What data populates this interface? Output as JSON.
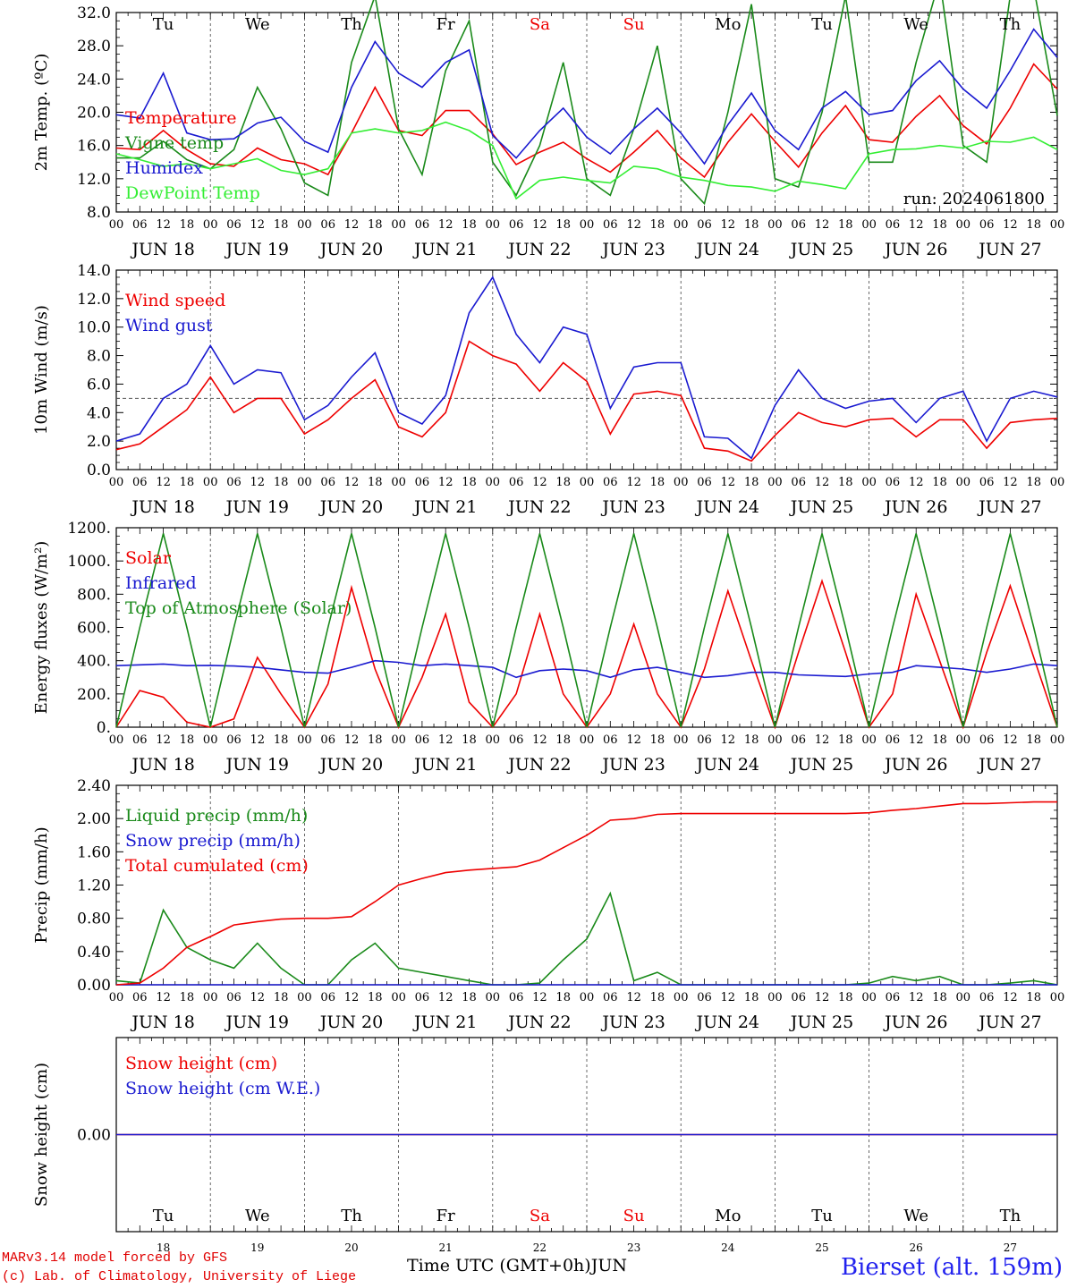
{
  "chart_data": [
    {
      "type": "line",
      "ylabel": "2m Temp. (ºC)",
      "ylim": [
        8,
        32
      ],
      "ytick_labels": [
        "8.0",
        "12.0",
        "16.0",
        "20.0",
        "24.0",
        "28.0",
        "32.0"
      ],
      "x_label_hours": [
        "00",
        "06",
        "12",
        "18"
      ],
      "date_labels": [
        "JUN 18",
        "JUN 19",
        "JUN 20",
        "JUN 21",
        "JUN 22",
        "JUN 23",
        "JUN 24",
        "JUN 25",
        "JUN 26",
        "JUN 27"
      ],
      "annotation": "run: 2024061800",
      "x": [
        0,
        6,
        12,
        18,
        24,
        30,
        36,
        42,
        48,
        54,
        60,
        66,
        72,
        78,
        84,
        90,
        96,
        102,
        108,
        114,
        120,
        126,
        132,
        138,
        144,
        150,
        156,
        162,
        168,
        174,
        180,
        186,
        192,
        198,
        204,
        210,
        216,
        222,
        228,
        234,
        240
      ],
      "series": [
        {
          "name": "Temperature",
          "color": "#ee0000",
          "values": [
            15.7,
            15.5,
            17.8,
            15.5,
            13.8,
            13.5,
            15.7,
            14.3,
            13.8,
            12.5,
            17.5,
            23,
            17.8,
            17.2,
            20.2,
            20.2,
            17.4,
            13.7,
            15.2,
            16.4,
            14.4,
            12.8,
            15.2,
            17.8,
            14.5,
            12.2,
            16.4,
            19.8,
            16.5,
            13.4,
            17.5,
            20.8,
            16.7,
            16.4,
            19.5,
            22,
            18.4,
            16.2,
            20.5,
            25.8,
            22.8
          ]
        },
        {
          "name": "Vigne temp",
          "color": "#1a8a1a",
          "values": [
            14.5,
            14.5,
            16.5,
            14.3,
            13.2,
            15.5,
            23,
            18,
            11.5,
            10,
            26,
            34,
            18,
            12.5,
            25,
            31,
            14,
            10,
            16,
            26,
            12,
            10,
            18,
            28,
            12,
            9,
            20,
            33,
            12,
            11,
            20,
            34,
            14,
            14,
            26,
            36,
            16,
            14,
            34,
            35,
            19.6
          ]
        },
        {
          "name": "Humidex",
          "color": "#1a1ad0",
          "values": [
            19.7,
            19.3,
            24.7,
            17.5,
            16.7,
            16.8,
            18.7,
            19.4,
            16.5,
            15.2,
            23,
            28.5,
            24.7,
            23,
            26,
            27.5,
            17.2,
            14.5,
            17.8,
            20.5,
            17,
            15,
            18,
            20.5,
            17.5,
            13.8,
            18.5,
            22.3,
            17.8,
            15.5,
            20.5,
            22.5,
            19.7,
            20.2,
            23.8,
            26.2,
            22.8,
            20.5,
            25,
            30,
            26.6
          ]
        },
        {
          "name": "DewPoint Temp",
          "color": "#33ee33",
          "values": [
            15,
            14.3,
            13.5,
            13.8,
            13.2,
            13.8,
            14.4,
            13,
            12.5,
            13.2,
            17.5,
            18,
            17.5,
            17.8,
            18.8,
            17.8,
            16,
            9.6,
            11.8,
            12.2,
            11.8,
            11.5,
            13.5,
            13.2,
            12.2,
            11.8,
            11.2,
            11,
            10.5,
            11.7,
            11.3,
            10.8,
            15,
            15.5,
            15.6,
            16,
            15.7,
            16.5,
            16.4,
            17,
            15.5
          ]
        }
      ]
    },
    {
      "type": "line",
      "ylabel": "10m Wind (m/s)",
      "ylim": [
        0,
        14
      ],
      "ytick_labels": [
        "0.0",
        "2.0",
        "4.0",
        "6.0",
        "8.0",
        "10.0",
        "12.0",
        "14.0"
      ],
      "x_label_hours": [
        "00",
        "06",
        "12",
        "18"
      ],
      "date_labels": [
        "JUN 18",
        "JUN 19",
        "JUN 20",
        "JUN 21",
        "JUN 22",
        "JUN 23",
        "JUN 24",
        "JUN 25",
        "JUN 26",
        "JUN 27"
      ],
      "reference_line": 5,
      "x": [
        0,
        6,
        12,
        18,
        24,
        30,
        36,
        42,
        48,
        54,
        60,
        66,
        72,
        78,
        84,
        90,
        96,
        102,
        108,
        114,
        120,
        126,
        132,
        138,
        144,
        150,
        156,
        162,
        168,
        174,
        180,
        186,
        192,
        198,
        204,
        210,
        216,
        222,
        228,
        234,
        240
      ],
      "series": [
        {
          "name": "Wind speed",
          "color": "#ee0000",
          "values": [
            1.4,
            1.8,
            3,
            4.2,
            6.5,
            4,
            5,
            5,
            2.5,
            3.5,
            5,
            6.3,
            3,
            2.3,
            4,
            9,
            8,
            7.4,
            5.5,
            7.5,
            6.2,
            2.5,
            5.3,
            5.5,
            5.2,
            1.5,
            1.3,
            0.6,
            2.4,
            4,
            3.3,
            3,
            3.5,
            3.6,
            2.3,
            3.5,
            3.5,
            1.5,
            3.3,
            3.5,
            3.6
          ]
        },
        {
          "name": "Wind gust",
          "color": "#1a1ad0",
          "values": [
            2,
            2.5,
            5,
            6,
            8.7,
            6,
            7,
            6.8,
            3.5,
            4.5,
            6.5,
            8.2,
            4,
            3.2,
            5.2,
            11,
            13.5,
            9.5,
            7.5,
            10,
            9.5,
            4.3,
            7.2,
            7.5,
            7.5,
            2.3,
            2.2,
            0.8,
            4.5,
            7,
            5,
            4.3,
            4.8,
            5,
            3.3,
            5,
            5.5,
            2,
            5,
            5.5,
            5.1
          ]
        }
      ]
    },
    {
      "type": "line",
      "ylabel": "Energy fluxes (W/m²)",
      "ylim": [
        0,
        1200
      ],
      "ytick_labels": [
        "0.",
        "200.",
        "400.",
        "600.",
        "800.",
        "1000.",
        "1200."
      ],
      "x_label_hours": [
        "00",
        "06",
        "12",
        "18"
      ],
      "date_labels": [
        "JUN 18",
        "JUN 19",
        "JUN 20",
        "JUN 21",
        "JUN 22",
        "JUN 23",
        "JUN 24",
        "JUN 25",
        "JUN 26",
        "JUN 27"
      ],
      "x": [
        0,
        6,
        12,
        18,
        24,
        30,
        36,
        42,
        48,
        54,
        60,
        66,
        72,
        78,
        84,
        90,
        96,
        102,
        108,
        114,
        120,
        126,
        132,
        138,
        144,
        150,
        156,
        162,
        168,
        174,
        180,
        186,
        192,
        198,
        204,
        210,
        216,
        222,
        228,
        234,
        240
      ],
      "series": [
        {
          "name": "Solar",
          "color": "#ee0000",
          "values": [
            0,
            220,
            180,
            30,
            0,
            50,
            420,
            200,
            0,
            260,
            840,
            350,
            0,
            300,
            680,
            150,
            0,
            200,
            680,
            200,
            0,
            200,
            620,
            200,
            0,
            350,
            820,
            400,
            0,
            450,
            880,
            450,
            0,
            200,
            800,
            400,
            0,
            450,
            850,
            420,
            0
          ]
        },
        {
          "name": "Infrared",
          "color": "#1a1ad0",
          "values": [
            370,
            375,
            380,
            370,
            372,
            368,
            360,
            345,
            330,
            325,
            360,
            400,
            390,
            370,
            380,
            370,
            360,
            300,
            340,
            350,
            340,
            300,
            345,
            360,
            330,
            300,
            310,
            330,
            330,
            315,
            310,
            305,
            320,
            330,
            370,
            360,
            350,
            330,
            350,
            380,
            370
          ]
        },
        {
          "name": "Top of Atmosphere (Solar)",
          "color": "#1a8a1a",
          "values": [
            0,
            600,
            1165,
            600,
            0,
            600,
            1165,
            600,
            0,
            600,
            1165,
            600,
            0,
            600,
            1165,
            600,
            0,
            600,
            1165,
            600,
            0,
            600,
            1165,
            600,
            0,
            600,
            1165,
            600,
            0,
            600,
            1165,
            600,
            0,
            600,
            1165,
            600,
            0,
            600,
            1165,
            600,
            0
          ]
        }
      ]
    },
    {
      "type": "line",
      "ylabel": "Precip (mm/h)",
      "ylim": [
        0,
        2.4
      ],
      "ytick_labels": [
        "0.00",
        "0.40",
        "0.80",
        "1.20",
        "1.60",
        "2.00",
        "2.40"
      ],
      "x_label_hours": [
        "00",
        "06",
        "12",
        "18"
      ],
      "date_labels": [
        "JUN 18",
        "JUN 19",
        "JUN 20",
        "JUN 21",
        "JUN 22",
        "JUN 23",
        "JUN 24",
        "JUN 25",
        "JUN 26",
        "JUN 27"
      ],
      "x": [
        0,
        6,
        12,
        18,
        24,
        30,
        36,
        42,
        48,
        54,
        60,
        66,
        72,
        78,
        84,
        90,
        96,
        102,
        108,
        114,
        120,
        126,
        132,
        138,
        144,
        150,
        156,
        162,
        168,
        174,
        180,
        186,
        192,
        198,
        204,
        210,
        216,
        222,
        228,
        234,
        240
      ],
      "series": [
        {
          "name": "Liquid precip (mm/h)",
          "color": "#1a8a1a",
          "values": [
            0.05,
            0.02,
            0.9,
            0.45,
            0.3,
            0.2,
            0.5,
            0.2,
            0,
            0,
            0.3,
            0.5,
            0.2,
            0.15,
            0.1,
            0.05,
            0,
            0,
            0.02,
            0.3,
            0.55,
            1.1,
            0.05,
            0.15,
            0,
            0,
            0,
            0,
            0,
            0,
            0,
            0,
            0.02,
            0.1,
            0.05,
            0.1,
            0,
            0,
            0.02,
            0.05,
            0
          ]
        },
        {
          "name": "Snow precip (mm/h)",
          "color": "#1a1ad0",
          "values": [
            0,
            0,
            0,
            0,
            0,
            0,
            0,
            0,
            0,
            0,
            0,
            0,
            0,
            0,
            0,
            0,
            0,
            0,
            0,
            0,
            0,
            0,
            0,
            0,
            0,
            0,
            0,
            0,
            0,
            0,
            0,
            0,
            0,
            0,
            0,
            0,
            0,
            0,
            0,
            0,
            0
          ]
        },
        {
          "name": "Total cumulated (cm)",
          "color": "#ee0000",
          "values": [
            0,
            0.02,
            0.2,
            0.45,
            0.58,
            0.72,
            0.76,
            0.79,
            0.8,
            0.8,
            0.82,
            1.0,
            1.2,
            1.28,
            1.35,
            1.38,
            1.4,
            1.42,
            1.5,
            1.65,
            1.8,
            1.98,
            2.0,
            2.05,
            2.06,
            2.06,
            2.06,
            2.06,
            2.06,
            2.06,
            2.06,
            2.06,
            2.07,
            2.1,
            2.12,
            2.15,
            2.18,
            2.18,
            2.19,
            2.2,
            2.2
          ]
        }
      ]
    },
    {
      "type": "line",
      "ylabel": "Snow height (cm)",
      "ytick_labels": [
        "0.00"
      ],
      "ylim": [
        -1,
        1
      ],
      "x": [
        0,
        240
      ],
      "series": [
        {
          "name": "Snow height (cm)",
          "color": "#ee0000",
          "values": [
            0,
            0
          ]
        },
        {
          "name": "Snow height (cm W.E.)",
          "color": "#1a1ad0",
          "values": [
            0,
            0
          ]
        }
      ]
    }
  ],
  "days": [
    {
      "abbr": "Tu",
      "date": "18",
      "color": "#000000"
    },
    {
      "abbr": "We",
      "date": "19",
      "color": "#000000"
    },
    {
      "abbr": "Th",
      "date": "20",
      "color": "#000000"
    },
    {
      "abbr": "Fr",
      "date": "21",
      "color": "#000000"
    },
    {
      "abbr": "Sa",
      "date": "22",
      "color": "#ee0000"
    },
    {
      "abbr": "Su",
      "date": "23",
      "color": "#ee0000"
    },
    {
      "abbr": "Mo",
      "date": "24",
      "color": "#000000"
    },
    {
      "abbr": "Tu",
      "date": "25",
      "color": "#000000"
    },
    {
      "abbr": "We",
      "date": "26",
      "color": "#000000"
    },
    {
      "abbr": "Th",
      "date": "27",
      "color": "#000000"
    }
  ],
  "footer": {
    "model_line": "MARv3.14 model forced by GFS",
    "copyright_line": "(c) Lab. of Climatology, University of Liege",
    "time_axis_label": "Time UTC (GMT+0h)",
    "month_label": "JUN",
    "station": "Bierset (alt. 159m)"
  }
}
